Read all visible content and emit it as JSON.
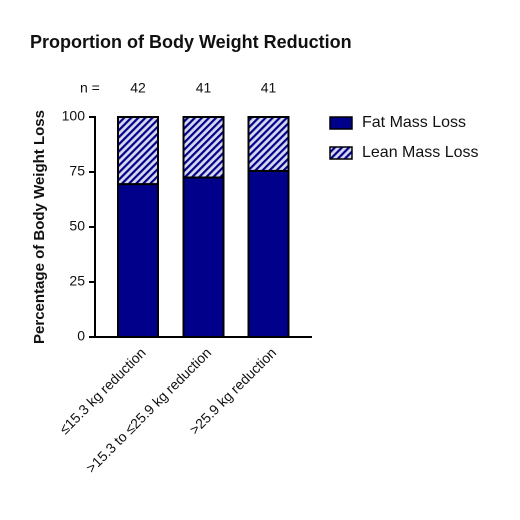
{
  "chart_data": {
    "type": "stacked_bar",
    "title": "Proportion of Body Weight Reduction",
    "y_label": "Percentage of Body Weight Loss",
    "n_label": "n =",
    "n_values": [
      42,
      41,
      41
    ],
    "categories": [
      "≤15.3 kg reduction",
      ">15.3 to ≤25.9 kg reduction",
      ">25.9 kg reduction"
    ],
    "series": [
      {
        "name": "Fat Mass Loss",
        "color": "#00008b",
        "fill_style": "solid",
        "values": [
          69.5,
          72.5,
          75.5
        ]
      },
      {
        "name": "Lean Mass Loss",
        "color": "#00008b",
        "fill_style": "hatch",
        "values": [
          30.5,
          27.5,
          24.5
        ]
      }
    ],
    "ylim": [
      0,
      100
    ],
    "yticks": [
      0,
      25,
      50,
      75,
      100
    ],
    "legend": "right"
  }
}
